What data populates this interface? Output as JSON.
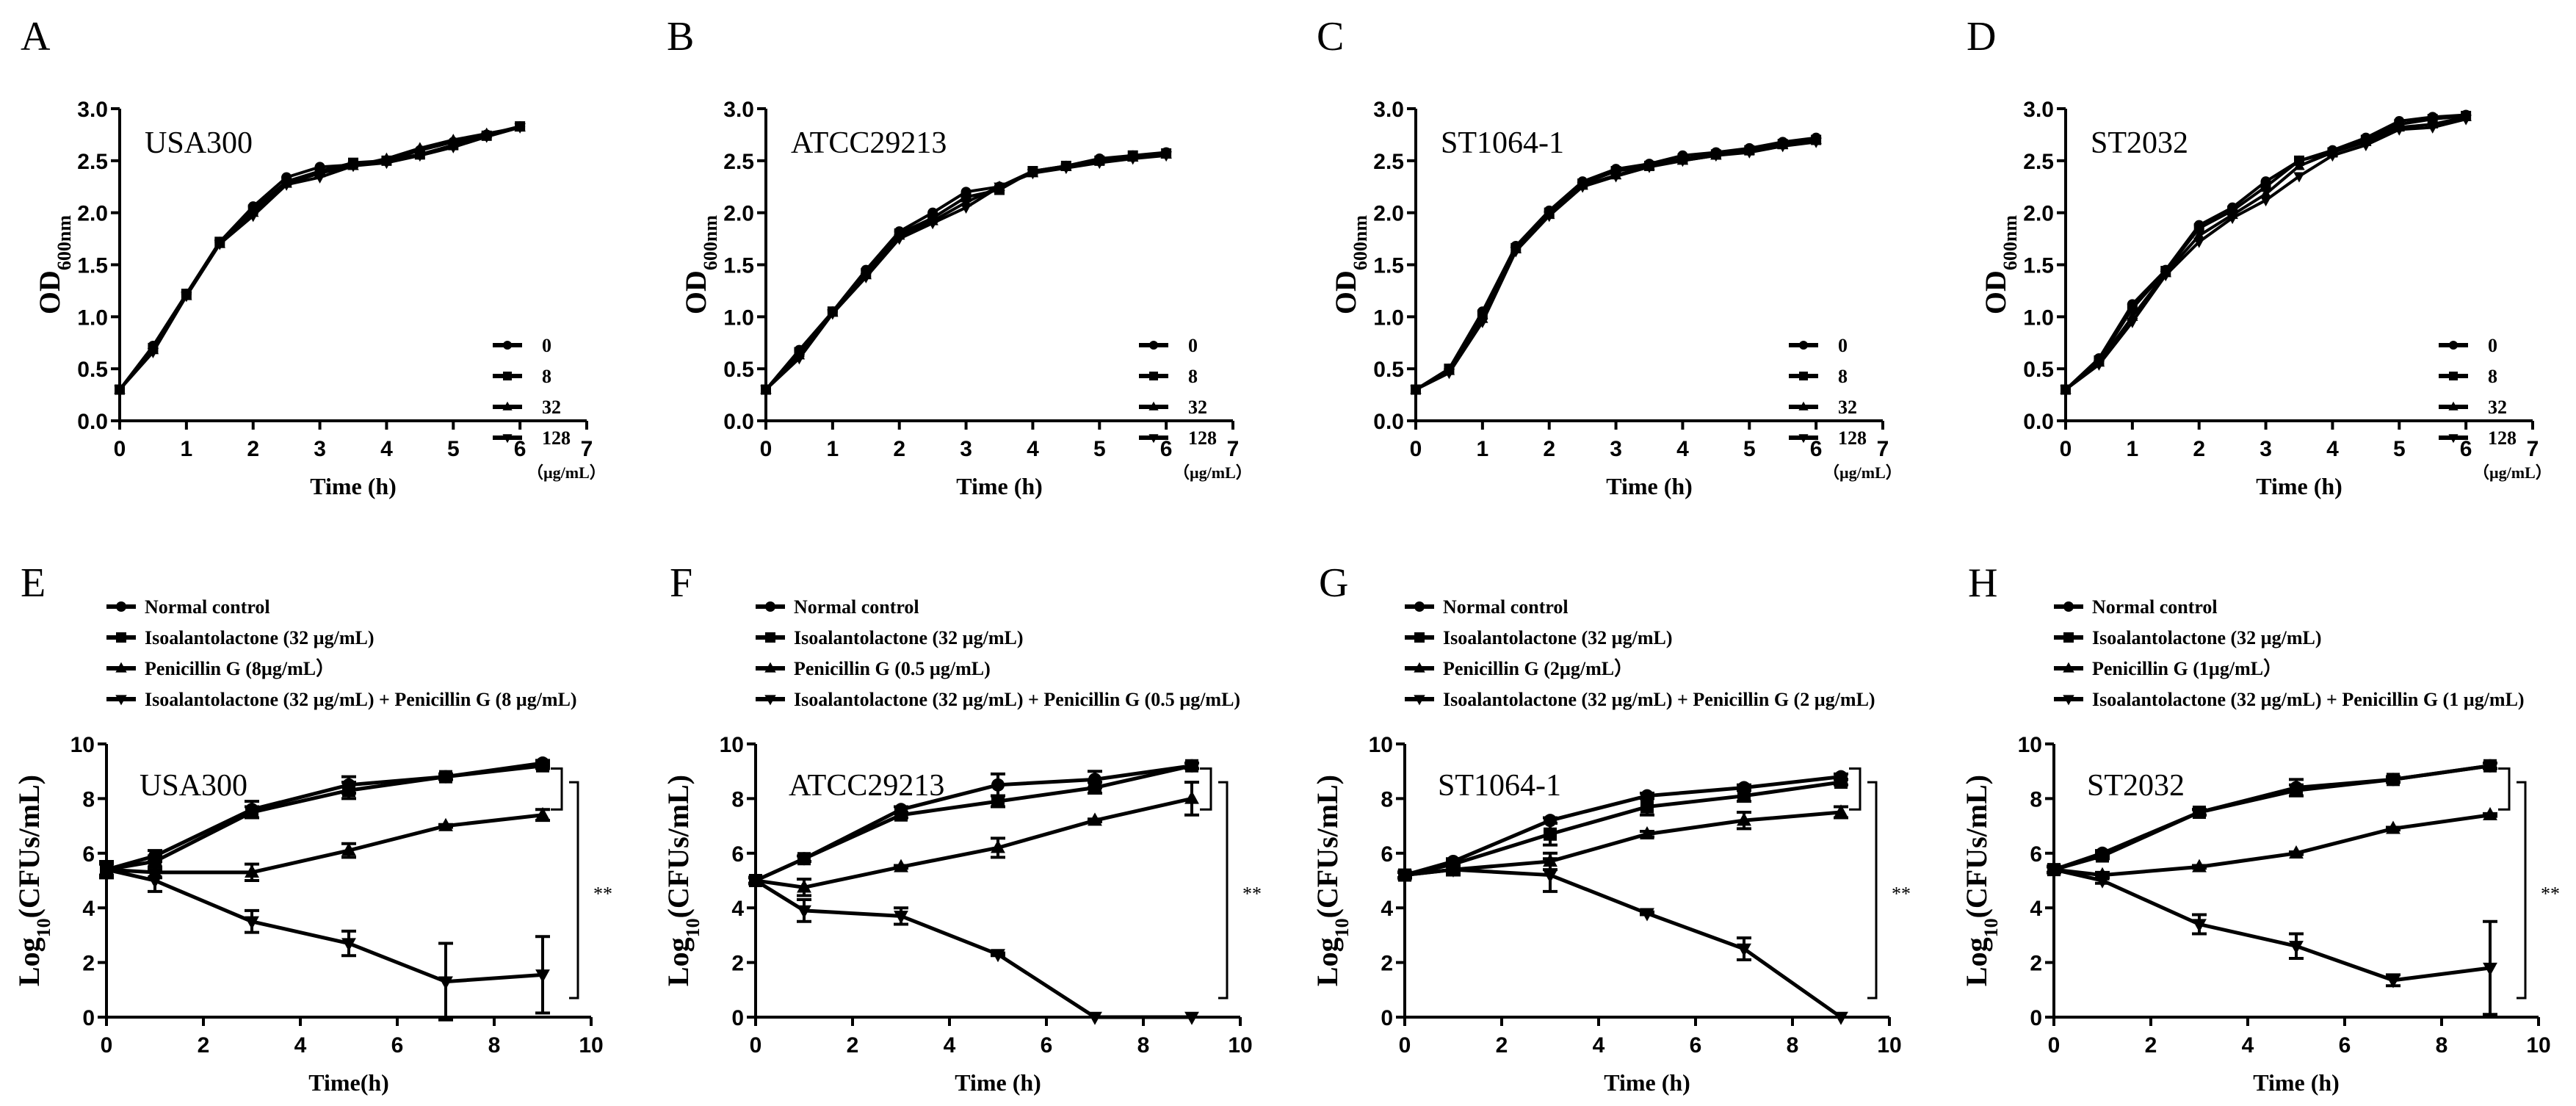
{
  "chart_data": [
    {
      "type": "line",
      "panel": "A",
      "strain": "USA300",
      "xlabel": "Time (h)",
      "ylabel": "OD",
      "ylabel_sub": "600nm",
      "xlim": [
        0,
        7
      ],
      "ylim": [
        0,
        3
      ],
      "xticks": [
        "0",
        "1",
        "2",
        "3",
        "4",
        "5",
        "6",
        "7"
      ],
      "yticks": [
        "0.0",
        "0.5",
        "1.0",
        "1.5",
        "2.0",
        "2.5",
        "3.0"
      ],
      "legend_unit": "（µg/mL）",
      "x": [
        0,
        0.5,
        1,
        1.5,
        2,
        2.5,
        3,
        3.5,
        4,
        4.5,
        5,
        5.5,
        6
      ],
      "series": [
        {
          "name": "0",
          "marker": "circle",
          "values": [
            0.3,
            0.72,
            1.22,
            1.72,
            2.06,
            2.34,
            2.44,
            2.46,
            2.5,
            2.6,
            2.68,
            2.75,
            2.83
          ]
        },
        {
          "name": "8",
          "marker": "square",
          "values": [
            0.3,
            0.7,
            1.22,
            1.72,
            2.03,
            2.3,
            2.4,
            2.48,
            2.5,
            2.56,
            2.65,
            2.74,
            2.83
          ]
        },
        {
          "name": "32",
          "marker": "triangle-up",
          "values": [
            0.3,
            0.68,
            1.2,
            1.7,
            2.0,
            2.28,
            2.38,
            2.45,
            2.52,
            2.62,
            2.7,
            2.76,
            2.82
          ]
        },
        {
          "name": "128",
          "marker": "triangle-down",
          "values": [
            0.3,
            0.66,
            1.2,
            1.7,
            1.97,
            2.27,
            2.34,
            2.45,
            2.48,
            2.55,
            2.63,
            2.73,
            2.82
          ]
        }
      ]
    },
    {
      "type": "line",
      "panel": "B",
      "strain": "ATCC29213",
      "xlabel": "Time (h)",
      "ylabel": "OD",
      "ylabel_sub": "600nm",
      "xlim": [
        0,
        7
      ],
      "ylim": [
        0,
        3
      ],
      "xticks": [
        "0",
        "1",
        "2",
        "3",
        "4",
        "5",
        "6",
        "7"
      ],
      "yticks": [
        "0.0",
        "0.5",
        "1.0",
        "1.5",
        "2.0",
        "2.5",
        "3.0"
      ],
      "legend_unit": "（µg/mL）",
      "x": [
        0,
        0.5,
        1,
        1.5,
        2,
        2.5,
        3,
        3.5,
        4,
        4.5,
        5,
        5.5,
        6
      ],
      "series": [
        {
          "name": "0",
          "marker": "circle",
          "values": [
            0.3,
            0.68,
            1.05,
            1.45,
            1.82,
            2.0,
            2.2,
            2.25,
            2.4,
            2.45,
            2.52,
            2.55,
            2.58
          ]
        },
        {
          "name": "8",
          "marker": "square",
          "values": [
            0.3,
            0.66,
            1.05,
            1.42,
            1.8,
            1.95,
            2.15,
            2.22,
            2.4,
            2.45,
            2.5,
            2.55,
            2.57
          ]
        },
        {
          "name": "32",
          "marker": "triangle-up",
          "values": [
            0.3,
            0.63,
            1.04,
            1.4,
            1.78,
            1.92,
            2.1,
            2.25,
            2.38,
            2.44,
            2.5,
            2.53,
            2.56
          ]
        },
        {
          "name": "128",
          "marker": "triangle-down",
          "values": [
            0.3,
            0.6,
            1.03,
            1.38,
            1.75,
            1.9,
            2.05,
            2.25,
            2.38,
            2.43,
            2.48,
            2.52,
            2.55
          ]
        }
      ]
    },
    {
      "type": "line",
      "panel": "C",
      "strain": "ST1064-1",
      "xlabel": "Time (h)",
      "ylabel": "OD",
      "ylabel_sub": "600nm",
      "xlim": [
        0,
        7
      ],
      "ylim": [
        0,
        3
      ],
      "xticks": [
        "0",
        "1",
        "2",
        "3",
        "4",
        "5",
        "6",
        "7"
      ],
      "yticks": [
        "0.0",
        "0.5",
        "1.0",
        "1.5",
        "2.0",
        "2.5",
        "3.0"
      ],
      "legend_unit": "（µg/mL）",
      "x": [
        0,
        0.5,
        1,
        1.5,
        2,
        2.5,
        3,
        3.5,
        4,
        4.5,
        5,
        5.5,
        6
      ],
      "series": [
        {
          "name": "0",
          "marker": "circle",
          "values": [
            0.3,
            0.5,
            1.05,
            1.68,
            2.02,
            2.3,
            2.42,
            2.47,
            2.55,
            2.58,
            2.62,
            2.68,
            2.72
          ]
        },
        {
          "name": "8",
          "marker": "square",
          "values": [
            0.3,
            0.5,
            1.02,
            1.66,
            2.0,
            2.28,
            2.4,
            2.45,
            2.52,
            2.56,
            2.6,
            2.66,
            2.7
          ]
        },
        {
          "name": "32",
          "marker": "triangle-up",
          "values": [
            0.3,
            0.48,
            0.98,
            1.65,
            1.98,
            2.26,
            2.36,
            2.45,
            2.5,
            2.55,
            2.6,
            2.65,
            2.7
          ]
        },
        {
          "name": "128",
          "marker": "triangle-down",
          "values": [
            0.3,
            0.46,
            0.95,
            1.63,
            1.97,
            2.25,
            2.35,
            2.44,
            2.5,
            2.55,
            2.58,
            2.64,
            2.68
          ]
        }
      ]
    },
    {
      "type": "line",
      "panel": "D",
      "strain": "ST2032",
      "xlabel": "Time (h)",
      "ylabel": "OD",
      "ylabel_sub": "600nm",
      "xlim": [
        0,
        7
      ],
      "ylim": [
        0,
        3
      ],
      "xticks": [
        "0",
        "1",
        "2",
        "3",
        "4",
        "5",
        "6",
        "7"
      ],
      "yticks": [
        "0.0",
        "0.5",
        "1.0",
        "1.5",
        "2.0",
        "2.5",
        "3.0"
      ],
      "legend_unit": "（µg/mL）",
      "x": [
        0,
        0.5,
        1,
        1.5,
        2,
        2.5,
        3,
        3.5,
        4,
        4.5,
        5,
        5.5,
        6
      ],
      "series": [
        {
          "name": "0",
          "marker": "circle",
          "values": [
            0.3,
            0.6,
            1.12,
            1.45,
            1.88,
            2.05,
            2.3,
            2.5,
            2.6,
            2.72,
            2.88,
            2.92,
            2.94
          ]
        },
        {
          "name": "8",
          "marker": "square",
          "values": [
            0.3,
            0.58,
            1.08,
            1.44,
            1.85,
            2.02,
            2.25,
            2.5,
            2.58,
            2.7,
            2.85,
            2.9,
            2.93
          ]
        },
        {
          "name": "32",
          "marker": "triangle-up",
          "values": [
            0.3,
            0.56,
            1.0,
            1.42,
            1.78,
            1.98,
            2.18,
            2.45,
            2.58,
            2.68,
            2.82,
            2.85,
            2.92
          ]
        },
        {
          "name": "128",
          "marker": "triangle-down",
          "values": [
            0.3,
            0.54,
            0.95,
            1.4,
            1.72,
            1.95,
            2.12,
            2.35,
            2.55,
            2.65,
            2.8,
            2.82,
            2.9
          ]
        }
      ]
    },
    {
      "type": "line",
      "panel": "E",
      "strain": "USA300",
      "xlabel": "Time(h)",
      "ylabel": "Log",
      "ylabel_sub": "10",
      "ylabel_rest": "(CFUs/mL)",
      "xlim": [
        0,
        10
      ],
      "ylim": [
        0,
        10
      ],
      "xticks": [
        "0",
        "2",
        "4",
        "6",
        "8",
        "10"
      ],
      "yticks": [
        "0",
        "2",
        "4",
        "6",
        "8",
        "10"
      ],
      "significance": "**",
      "x": [
        0,
        1,
        3,
        5,
        7,
        9
      ],
      "series": [
        {
          "name": "Normal control",
          "marker": "circle",
          "values": [
            5.4,
            5.9,
            7.6,
            8.5,
            8.8,
            9.3
          ],
          "err": [
            0.3,
            0.2,
            0.3,
            0.3,
            0.1,
            0.1
          ]
        },
        {
          "name": "Isoalantolactone (32 µg/mL)",
          "marker": "square",
          "values": [
            5.4,
            5.7,
            7.5,
            8.3,
            8.8,
            9.2
          ],
          "err": [
            0.3,
            0.2,
            0.2,
            0.3,
            0.1,
            0.1
          ]
        },
        {
          "name": "Penicillin G (8µg/mL）",
          "marker": "triangle-up",
          "values": [
            5.4,
            5.3,
            5.3,
            6.1,
            7.0,
            7.4
          ],
          "err": [
            0.2,
            0.2,
            0.3,
            0.25,
            0.05,
            0.2
          ]
        },
        {
          "name": "Isoalantolactone (32 µg/mL) + Penicillin G (8 µg/mL)",
          "marker": "triangle-down",
          "values": [
            5.4,
            5.0,
            3.5,
            2.7,
            1.3,
            1.55
          ],
          "err": [
            0.2,
            0.4,
            0.4,
            0.45,
            1.4,
            1.4
          ]
        }
      ]
    },
    {
      "type": "line",
      "panel": "F",
      "strain": "ATCC29213",
      "xlabel": "Time (h)",
      "ylabel": "Log",
      "ylabel_sub": "10",
      "ylabel_rest": "(CFUs/mL)",
      "xlim": [
        0,
        10
      ],
      "ylim": [
        0,
        10
      ],
      "xticks": [
        "0",
        "2",
        "4",
        "6",
        "8",
        "10"
      ],
      "yticks": [
        "0",
        "2",
        "4",
        "6",
        "8",
        "10"
      ],
      "significance": "**",
      "x": [
        0,
        1,
        3,
        5,
        7,
        9
      ],
      "series": [
        {
          "name": "Normal control",
          "marker": "circle",
          "values": [
            5.0,
            5.8,
            7.6,
            8.5,
            8.7,
            9.2
          ],
          "err": [
            0.1,
            0.1,
            0.1,
            0.4,
            0.3,
            0.1
          ]
        },
        {
          "name": "Isoalantolactone (32 µg/mL)",
          "marker": "square",
          "values": [
            5.0,
            5.8,
            7.4,
            7.9,
            8.4,
            9.2
          ],
          "err": [
            0.1,
            0.1,
            0.1,
            0.2,
            0.2,
            0.1
          ]
        },
        {
          "name": "Penicillin G (0.5 µg/mL)",
          "marker": "triangle-up",
          "values": [
            5.0,
            4.75,
            5.5,
            6.2,
            7.2,
            8.0
          ],
          "err": [
            0.1,
            0.3,
            0.05,
            0.35,
            0.05,
            0.6
          ]
        },
        {
          "name": "Isoalantolactone (32 µg/mL) + Penicillin G (0.5 µg/mL)",
          "marker": "triangle-down",
          "values": [
            5.0,
            3.9,
            3.7,
            2.3,
            0,
            0
          ],
          "err": [
            0.1,
            0.4,
            0.3,
            0.05,
            0,
            0
          ]
        }
      ]
    },
    {
      "type": "line",
      "panel": "G",
      "strain": "ST1064-1",
      "xlabel": "Time (h)",
      "ylabel": "Log",
      "ylabel_sub": "10",
      "ylabel_rest": "(CFUs/mL)",
      "xlim": [
        0,
        10
      ],
      "ylim": [
        0,
        10
      ],
      "xticks": [
        "0",
        "2",
        "4",
        "6",
        "8",
        "10"
      ],
      "yticks": [
        "0",
        "2",
        "4",
        "6",
        "8",
        "10"
      ],
      "significance": "**",
      "x": [
        0,
        1,
        3,
        5,
        7,
        9
      ],
      "series": [
        {
          "name": "Normal control",
          "marker": "circle",
          "values": [
            5.2,
            5.7,
            7.2,
            8.1,
            8.4,
            8.8
          ],
          "err": [
            0.1,
            0.1,
            0.1,
            0.1,
            0.1,
            0.1
          ]
        },
        {
          "name": "Isoalantolactone (32 µg/mL)",
          "marker": "square",
          "values": [
            5.2,
            5.6,
            6.7,
            7.7,
            8.1,
            8.6
          ],
          "err": [
            0.1,
            0.1,
            0.4,
            0.3,
            0.2,
            0.1
          ]
        },
        {
          "name": "Penicillin G (2µg/mL）",
          "marker": "triangle-up",
          "values": [
            5.2,
            5.4,
            5.7,
            6.7,
            7.2,
            7.5
          ],
          "err": [
            0.1,
            0.1,
            0.3,
            0.1,
            0.3,
            0.2
          ]
        },
        {
          "name": "Isoalantolactone (32 µg/mL) + Penicillin G (2 µg/mL)",
          "marker": "triangle-down",
          "values": [
            5.2,
            5.4,
            5.2,
            3.8,
            2.5,
            0
          ],
          "err": [
            0.1,
            0.2,
            0.6,
            0.05,
            0.4,
            0
          ]
        }
      ]
    },
    {
      "type": "line",
      "panel": "H",
      "strain": "ST2032",
      "xlabel": "Time (h)",
      "ylabel": "Log",
      "ylabel_sub": "10",
      "ylabel_rest": "(CFUs/mL)",
      "xlim": [
        0,
        10
      ],
      "ylim": [
        0,
        10
      ],
      "xticks": [
        "0",
        "2",
        "4",
        "6",
        "8",
        "10"
      ],
      "yticks": [
        "0",
        "2",
        "4",
        "6",
        "8",
        "10"
      ],
      "significance": "**",
      "x": [
        0,
        1,
        3,
        5,
        7,
        9
      ],
      "series": [
        {
          "name": "Normal control",
          "marker": "circle",
          "values": [
            5.4,
            6.0,
            7.5,
            8.4,
            8.7,
            9.2
          ],
          "err": [
            0.1,
            0.1,
            0.1,
            0.3,
            0.1,
            0.1
          ]
        },
        {
          "name": "Isoalantolactone (32 µg/mL)",
          "marker": "square",
          "values": [
            5.4,
            5.9,
            7.5,
            8.3,
            8.7,
            9.2
          ],
          "err": [
            0.1,
            0.1,
            0.1,
            0.2,
            0.1,
            0.1
          ]
        },
        {
          "name": "Penicillin G (1µg/mL）",
          "marker": "triangle-up",
          "values": [
            5.4,
            5.2,
            5.5,
            6.0,
            6.9,
            7.4
          ],
          "err": [
            0.1,
            0.1,
            0.05,
            0.05,
            0.05,
            0.05
          ]
        },
        {
          "name": "Isoalantolactone (32 µg/mL) + Penicillin G (1 µg/mL)",
          "marker": "triangle-down",
          "values": [
            5.4,
            5.0,
            3.4,
            2.6,
            1.35,
            1.8
          ],
          "err": [
            0.1,
            0.1,
            0.35,
            0.45,
            0.2,
            1.7
          ]
        }
      ]
    }
  ]
}
